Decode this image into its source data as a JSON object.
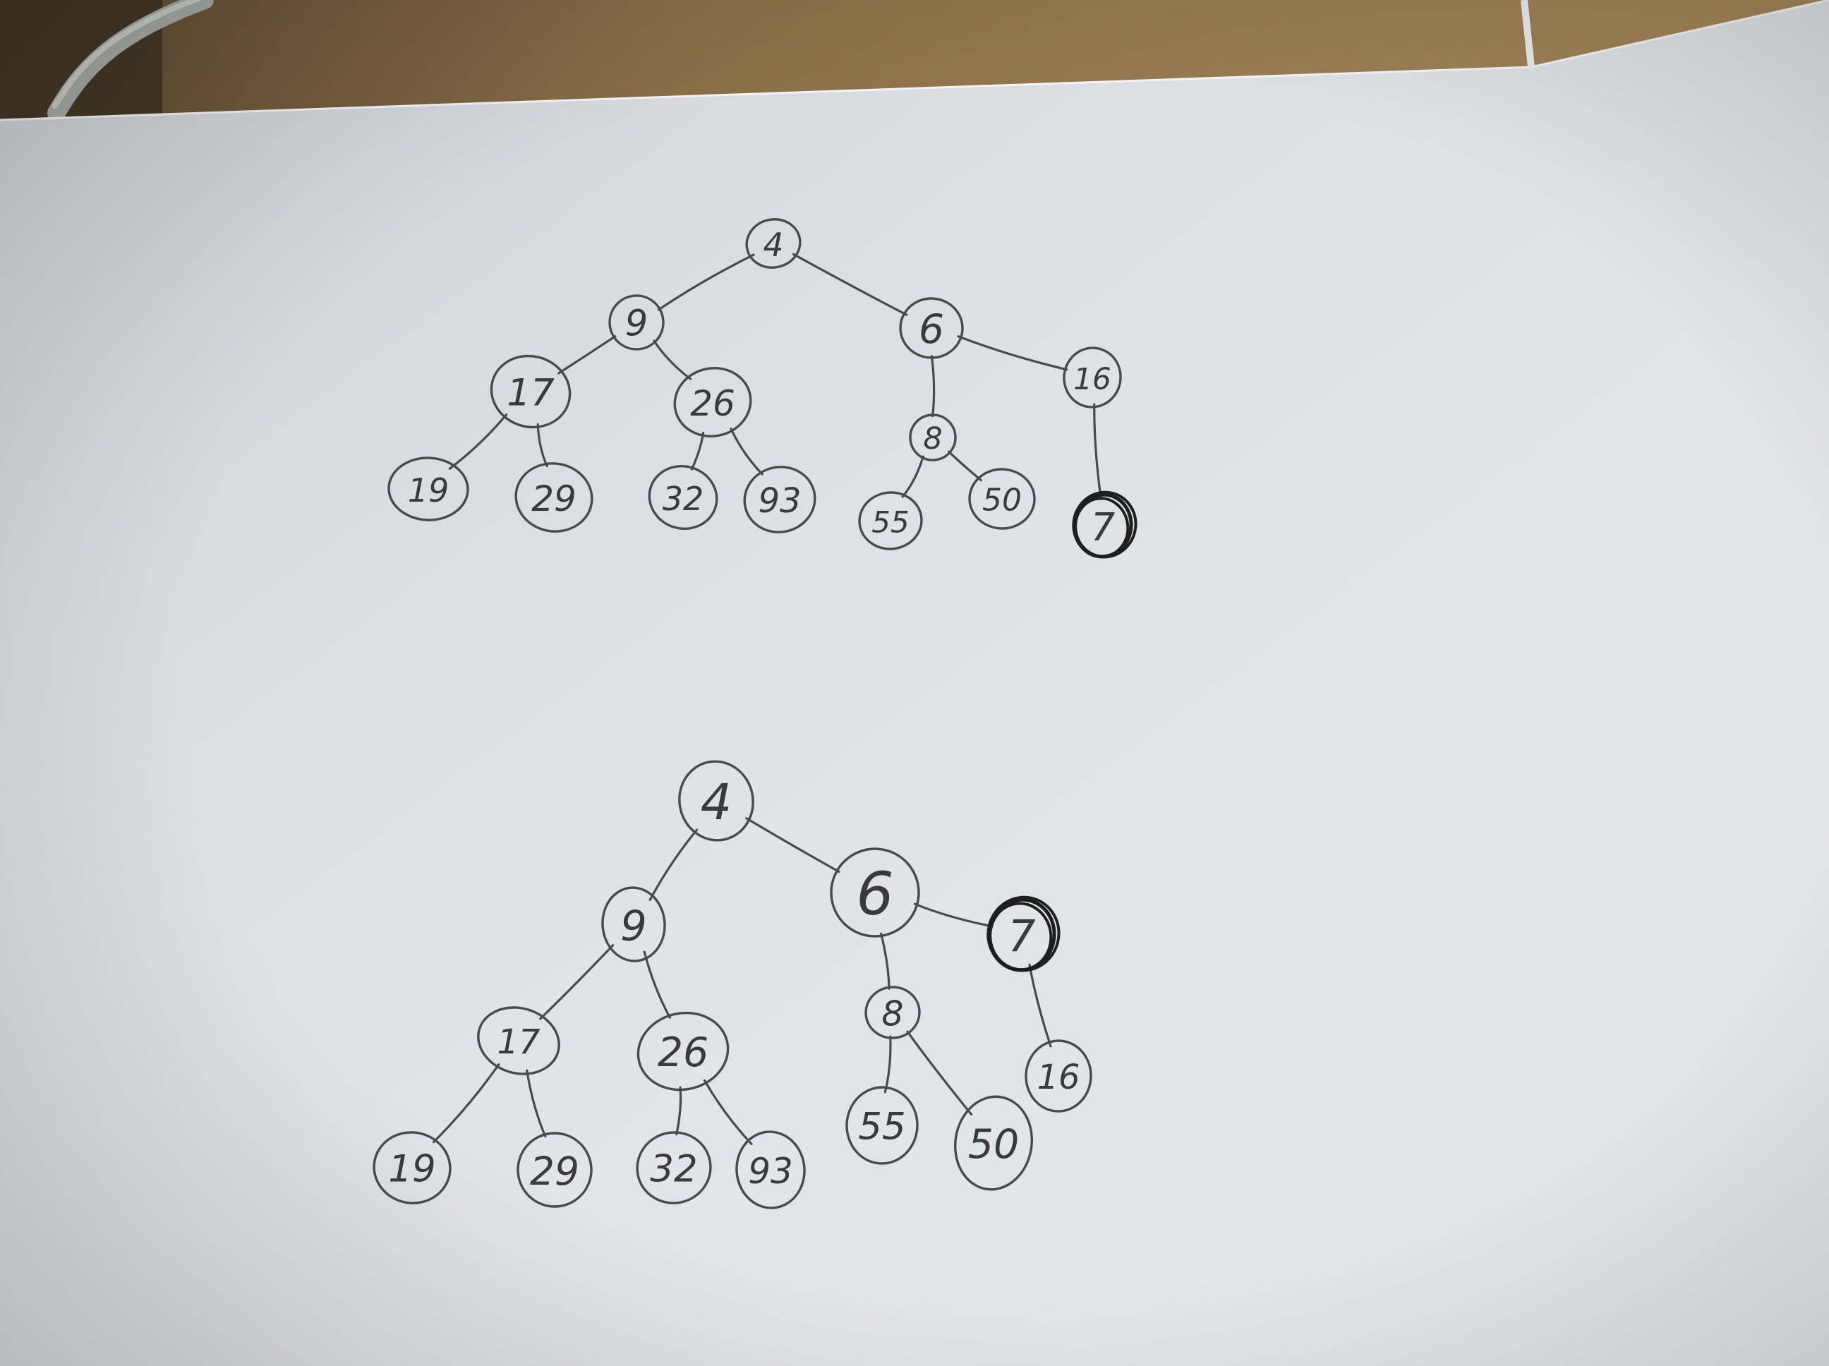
{
  "photo": {
    "subject": "hand-drawn-heap-trees",
    "colors": {
      "desk": "#8a6e48",
      "desk_shadow": "#3a2f22",
      "paper": "#dfe2e6",
      "paper_shade": "#c9ccd2",
      "pencil": "#4a4a4a",
      "pen": "#1e1e1e",
      "cable": "#a7aaa6"
    }
  },
  "tree_top": {
    "nodes": [
      {
        "id": "t_4",
        "label": "4",
        "emphasis": false
      },
      {
        "id": "t_9",
        "label": "9",
        "emphasis": false
      },
      {
        "id": "t_6",
        "label": "6",
        "emphasis": false
      },
      {
        "id": "t_16",
        "label": "16",
        "emphasis": false
      },
      {
        "id": "t_17",
        "label": "17",
        "emphasis": false
      },
      {
        "id": "t_26",
        "label": "26",
        "emphasis": false
      },
      {
        "id": "t_8",
        "label": "8",
        "emphasis": false
      },
      {
        "id": "t_19",
        "label": "19",
        "emphasis": false
      },
      {
        "id": "t_29",
        "label": "29",
        "emphasis": false
      },
      {
        "id": "t_32",
        "label": "32",
        "emphasis": false
      },
      {
        "id": "t_93",
        "label": "93",
        "emphasis": false
      },
      {
        "id": "t_55",
        "label": "55",
        "emphasis": false
      },
      {
        "id": "t_50",
        "label": "50",
        "emphasis": false
      },
      {
        "id": "t_7",
        "label": "7",
        "emphasis": true
      }
    ],
    "edges": [
      [
        "t_4",
        "t_9"
      ],
      [
        "t_4",
        "t_6"
      ],
      [
        "t_6",
        "t_16"
      ],
      [
        "t_9",
        "t_17"
      ],
      [
        "t_9",
        "t_26"
      ],
      [
        "t_6",
        "t_8"
      ],
      [
        "t_16",
        "t_7"
      ],
      [
        "t_17",
        "t_19"
      ],
      [
        "t_17",
        "t_29"
      ],
      [
        "t_26",
        "t_32"
      ],
      [
        "t_26",
        "t_93"
      ],
      [
        "t_8",
        "t_55"
      ],
      [
        "t_8",
        "t_50"
      ]
    ]
  },
  "tree_bottom": {
    "nodes": [
      {
        "id": "b_4",
        "label": "4",
        "emphasis": false
      },
      {
        "id": "b_9",
        "label": "9",
        "emphasis": false
      },
      {
        "id": "b_6",
        "label": "6",
        "emphasis": false
      },
      {
        "id": "b_7",
        "label": "7",
        "emphasis": true
      },
      {
        "id": "b_17",
        "label": "17",
        "emphasis": false
      },
      {
        "id": "b_26",
        "label": "26",
        "emphasis": false
      },
      {
        "id": "b_8",
        "label": "8",
        "emphasis": false
      },
      {
        "id": "b_16",
        "label": "16",
        "emphasis": false
      },
      {
        "id": "b_19",
        "label": "19",
        "emphasis": false
      },
      {
        "id": "b_29",
        "label": "29",
        "emphasis": false
      },
      {
        "id": "b_32",
        "label": "32",
        "emphasis": false
      },
      {
        "id": "b_93",
        "label": "93",
        "emphasis": false
      },
      {
        "id": "b_55",
        "label": "55",
        "emphasis": false
      },
      {
        "id": "b_50",
        "label": "50",
        "emphasis": false
      }
    ],
    "edges": [
      [
        "b_4",
        "b_9"
      ],
      [
        "b_4",
        "b_6"
      ],
      [
        "b_6",
        "b_7"
      ],
      [
        "b_9",
        "b_17"
      ],
      [
        "b_9",
        "b_26"
      ],
      [
        "b_6",
        "b_8"
      ],
      [
        "b_7",
        "b_16"
      ],
      [
        "b_17",
        "b_19"
      ],
      [
        "b_17",
        "b_29"
      ],
      [
        "b_26",
        "b_32"
      ],
      [
        "b_26",
        "b_93"
      ],
      [
        "b_8",
        "b_55"
      ],
      [
        "b_8",
        "b_50"
      ]
    ]
  }
}
